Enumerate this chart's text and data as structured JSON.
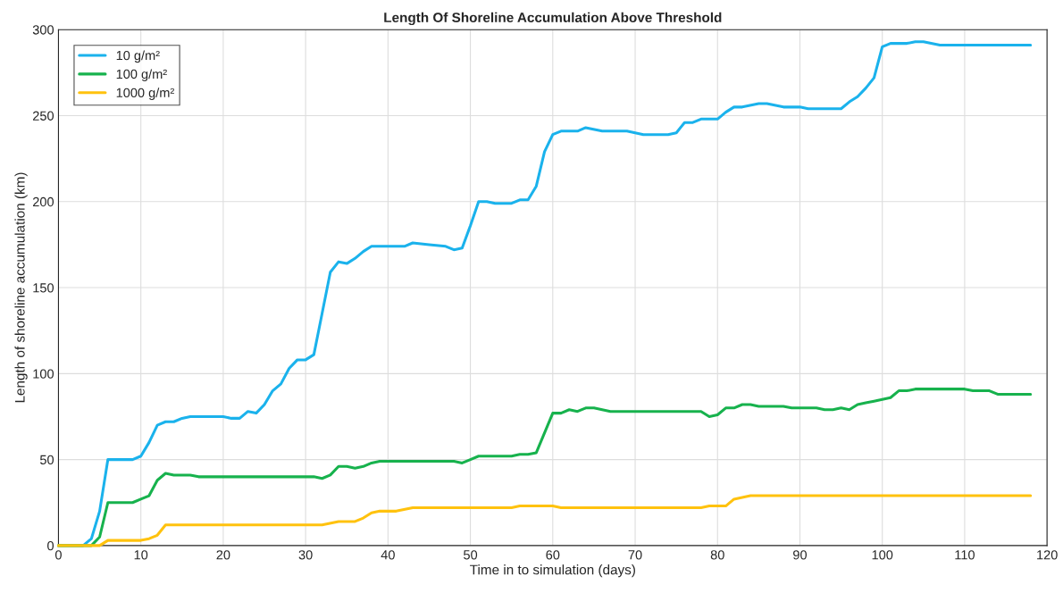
{
  "chart_data": {
    "type": "line",
    "title": "Length Of Shoreline Accumulation Above Threshold",
    "xlabel": "Time in to simulation (days)",
    "ylabel": "Length of shoreline accumulation (km)",
    "xlim": [
      0,
      120
    ],
    "xticks": [
      0,
      10,
      20,
      30,
      40,
      50,
      60,
      70,
      80,
      90,
      100,
      110,
      120
    ],
    "ylim": [
      0,
      300
    ],
    "yticks": [
      0,
      50,
      100,
      150,
      200,
      250,
      300
    ],
    "grid": true,
    "legend": "top left",
    "marker": "none",
    "line_style": "solid",
    "series": [
      {
        "name": "10 g/m²",
        "color": "#1ab2ec",
        "x": [
          0,
          3,
          4,
          5,
          6,
          9,
          10,
          11,
          12,
          13,
          14,
          15,
          16,
          20,
          21,
          22,
          23,
          24,
          25,
          26,
          27,
          28,
          29,
          30,
          31,
          32,
          33,
          34,
          35,
          36,
          37,
          38,
          42,
          43,
          45,
          47,
          48,
          49,
          50,
          51,
          52,
          53,
          55,
          56,
          57,
          58,
          59,
          60,
          61,
          63,
          64,
          66,
          69,
          71,
          74,
          75,
          76,
          77,
          78,
          80,
          81,
          82,
          83,
          85,
          86,
          88,
          90,
          91,
          95,
          96,
          97,
          98,
          99,
          100,
          101,
          103,
          104,
          105,
          107,
          118
        ],
        "values": [
          0,
          0,
          4,
          20,
          50,
          50,
          52,
          60,
          70,
          72,
          72,
          74,
          75,
          75,
          74,
          74,
          78,
          77,
          82,
          90,
          94,
          103,
          108,
          108,
          111,
          135,
          159,
          165,
          164,
          167,
          171,
          174,
          174,
          176,
          175,
          174,
          172,
          173,
          186,
          200,
          200,
          199,
          199,
          201,
          201,
          209,
          229,
          239,
          241,
          241,
          243,
          241,
          241,
          239,
          239,
          240,
          246,
          246,
          248,
          248,
          252,
          255,
          255,
          257,
          257,
          255,
          255,
          254,
          254,
          258,
          261,
          266,
          272,
          290,
          292,
          292,
          293,
          293,
          291,
          291
        ]
      },
      {
        "name": "100 g/m²",
        "color": "#17b24d",
        "x": [
          0,
          4,
          5,
          6,
          9,
          10,
          11,
          12,
          13,
          14,
          16,
          17,
          31,
          32,
          33,
          34,
          35,
          36,
          37,
          38,
          39,
          48,
          49,
          50,
          51,
          55,
          56,
          57,
          58,
          60,
          61,
          62,
          63,
          64,
          65,
          67,
          78,
          79,
          80,
          81,
          82,
          83,
          84,
          85,
          88,
          89,
          92,
          93,
          94,
          95,
          96,
          97,
          98,
          99,
          100,
          101,
          102,
          103,
          104,
          110,
          111,
          113,
          114,
          118
        ],
        "values": [
          0,
          0,
          5,
          25,
          25,
          27,
          29,
          38,
          42,
          41,
          41,
          40,
          40,
          39,
          41,
          46,
          46,
          45,
          46,
          48,
          49,
          49,
          48,
          50,
          52,
          52,
          53,
          53,
          54,
          77,
          77,
          79,
          78,
          80,
          80,
          78,
          78,
          75,
          76,
          80,
          80,
          82,
          82,
          81,
          81,
          80,
          80,
          79,
          79,
          80,
          79,
          82,
          83,
          84,
          85,
          86,
          90,
          90,
          91,
          91,
          90,
          90,
          88,
          88
        ]
      },
      {
        "name": "1000 g/m²",
        "color": "#ffc20e",
        "x": [
          0,
          5,
          6,
          10,
          11,
          12,
          13,
          32,
          34,
          36,
          37,
          38,
          39,
          41,
          43,
          55,
          56,
          60,
          61,
          78,
          79,
          81,
          82,
          83,
          84,
          118
        ],
        "values": [
          0,
          0,
          3,
          3,
          4,
          6,
          12,
          12,
          14,
          14,
          16,
          19,
          20,
          20,
          22,
          22,
          23,
          23,
          22,
          22,
          23,
          23,
          27,
          28,
          29,
          29
        ]
      }
    ]
  }
}
